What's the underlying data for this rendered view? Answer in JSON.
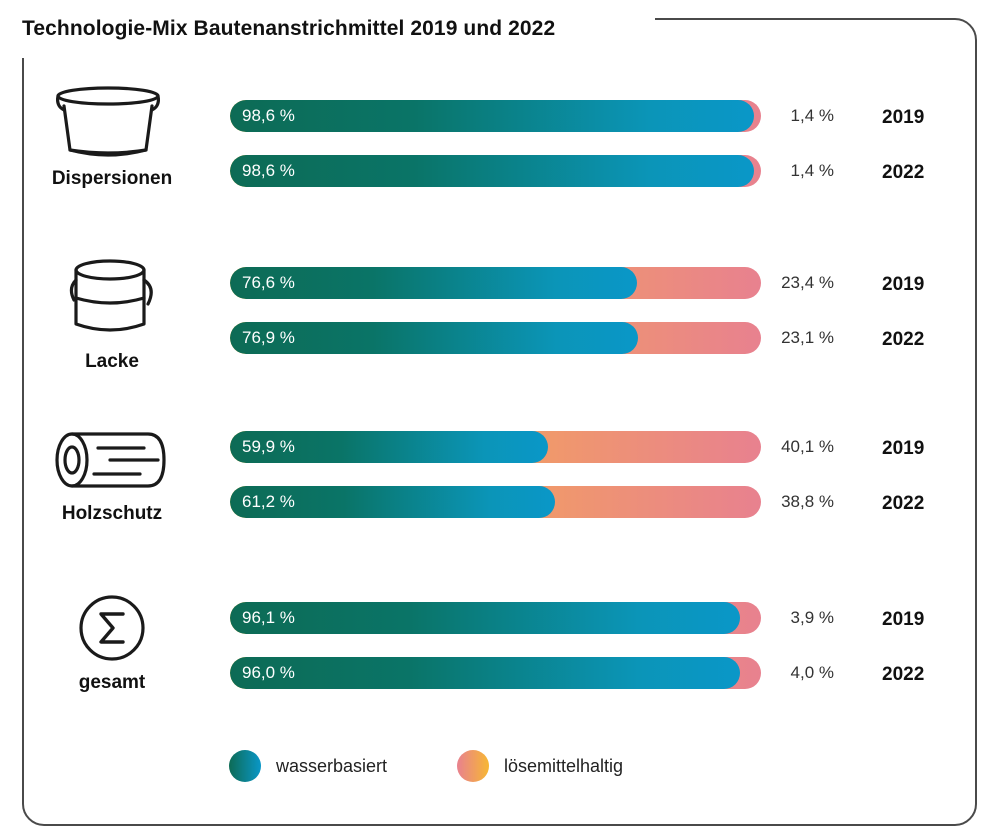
{
  "title": "Technologie-Mix Bautenanstrichmittel 2019 und 2022",
  "colors": {
    "wasserbasiert": [
      "#0d6b55",
      "#0a97c8"
    ],
    "loesemittelhaltig": [
      "#f7b733",
      "#e8818f"
    ],
    "frame": "#4a4a4a"
  },
  "chart_data": {
    "type": "bar",
    "orientation": "horizontal",
    "stacked": "percent",
    "title": "Technologie-Mix Bautenanstrichmittel 2019 und 2022",
    "categories": [
      {
        "label": "Dispersionen",
        "icon": "paint-bucket-icon",
        "rows": [
          {
            "year": "2019",
            "wasserbasiert": 98.6,
            "loesemittelhaltig": 1.4,
            "wasserbasiert_label": "98,6 %",
            "loesemittelhaltig_label": "1,4 %"
          },
          {
            "year": "2022",
            "wasserbasiert": 98.6,
            "loesemittelhaltig": 1.4,
            "wasserbasiert_label": "98,6 %",
            "loesemittelhaltig_label": "1,4 %"
          }
        ]
      },
      {
        "label": "Lacke",
        "icon": "paint-can-icon",
        "rows": [
          {
            "year": "2019",
            "wasserbasiert": 76.6,
            "loesemittelhaltig": 23.4,
            "wasserbasiert_label": "76,6 %",
            "loesemittelhaltig_label": "23,4 %"
          },
          {
            "year": "2022",
            "wasserbasiert": 76.9,
            "loesemittelhaltig": 23.1,
            "wasserbasiert_label": "76,9 %",
            "loesemittelhaltig_label": "23,1 %"
          }
        ]
      },
      {
        "label": "Holzschutz",
        "icon": "wood-log-icon",
        "rows": [
          {
            "year": "2019",
            "wasserbasiert": 59.9,
            "loesemittelhaltig": 40.1,
            "wasserbasiert_label": "59,9 %",
            "loesemittelhaltig_label": "40,1 %"
          },
          {
            "year": "2022",
            "wasserbasiert": 61.2,
            "loesemittelhaltig": 38.8,
            "wasserbasiert_label": "61,2 %",
            "loesemittelhaltig_label": "38,8 %"
          }
        ]
      },
      {
        "label": "gesamt",
        "icon": "sigma-icon",
        "rows": [
          {
            "year": "2019",
            "wasserbasiert": 96.1,
            "loesemittelhaltig": 3.9,
            "wasserbasiert_label": "96,1 %",
            "loesemittelhaltig_label": "3,9 %"
          },
          {
            "year": "2022",
            "wasserbasiert": 96.0,
            "loesemittelhaltig": 4.0,
            "wasserbasiert_label": "96,0 %",
            "loesemittelhaltig_label": "4,0 %"
          }
        ]
      }
    ],
    "series": [
      {
        "name": "wasserbasiert"
      },
      {
        "name": "lösemittelhaltig"
      }
    ],
    "xlim": [
      0,
      100
    ],
    "grid": false,
    "legend_position": "bottom"
  },
  "legend": {
    "water_label": "wasserbasiert",
    "solvent_label": "lösemittelhaltig"
  }
}
